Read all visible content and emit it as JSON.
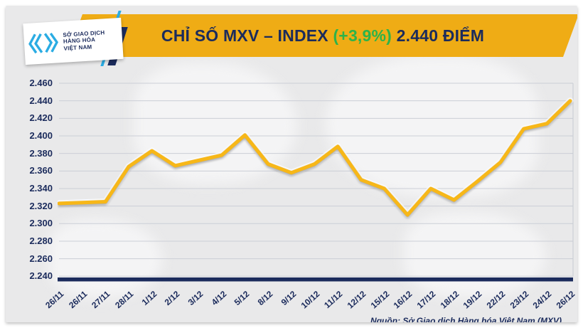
{
  "header": {
    "logo": {
      "line1": "SỞ GIAO DỊCH",
      "line2": "HÀNG HÓA",
      "line3": "VIỆT NAM",
      "mark_icon": "mxv-chevrons-icon",
      "mark_color": "#2aace3"
    },
    "title": {
      "main": "CHỈ SỐ MXV – INDEX",
      "change": "(+3,9%)",
      "value": "2.440 ĐIỂM"
    },
    "banner_color": "#efac15"
  },
  "chart_data": {
    "type": "area",
    "title": "CHỈ SỐ MXV – INDEX (+3,9%) 2.440 ĐIỂM",
    "x": [
      "26/11",
      "26/11",
      "27/11",
      "28/11",
      "1/12",
      "2/12",
      "3/12",
      "4/12",
      "5/12",
      "8/12",
      "9/12",
      "10/12",
      "11/12",
      "12/12",
      "15/12",
      "16/12",
      "17/12",
      "18/12",
      "19/12",
      "22/12",
      "23/12",
      "24/12",
      "26/12"
    ],
    "values": [
      2323,
      2324,
      2325,
      2365,
      2383,
      2366,
      2372,
      2378,
      2401,
      2368,
      2358,
      2368,
      2388,
      2350,
      2340,
      2310,
      2340,
      2327,
      2348,
      2370,
      2408,
      2414,
      2440
    ],
    "ylim": [
      2240,
      2460
    ],
    "ytick_step": 20,
    "ytick_labels": [
      "2.460",
      "2.440",
      "2.420",
      "2.400",
      "2.380",
      "2.360",
      "2.340",
      "2.320",
      "2.300",
      "2.280",
      "2.260",
      "2.240"
    ],
    "xlabel": "",
    "ylabel": "",
    "grid": true,
    "legend_position": "none",
    "line_color": "#f7b718",
    "line_halo": "#ffffff",
    "area_top": "#4e628f",
    "area_mid": "#2a3a68",
    "area_bottom": "#131f45",
    "grid_color": "#c7cbd3",
    "axis_bar_color": "#1b2b5c",
    "label_color": "#1b2b5c"
  },
  "footer": {
    "source": "Nguồn: Sở Giao dịch Hàng hóa Việt Nam (MXV)"
  }
}
